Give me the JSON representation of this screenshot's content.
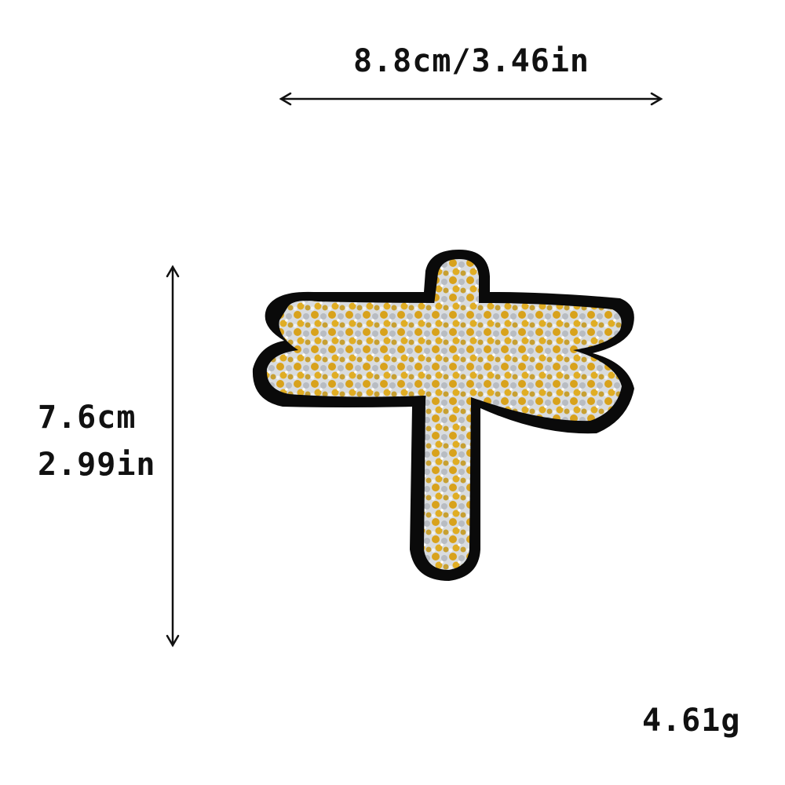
{
  "dimensions": {
    "width_text": "8.8cm/3.46in",
    "height_cm_text": "7.6cm",
    "height_in_text": "2.99in",
    "weight_text": "4.61g"
  },
  "colors": {
    "background": "#ffffff",
    "text": "#111111",
    "outline": "#0a0a0a",
    "gold_rhinestone": "#d8a21c",
    "silver_rhinestone": "#c9ccd0"
  },
  "product": {
    "icon": "dragonfly-rhinestone-patch"
  }
}
